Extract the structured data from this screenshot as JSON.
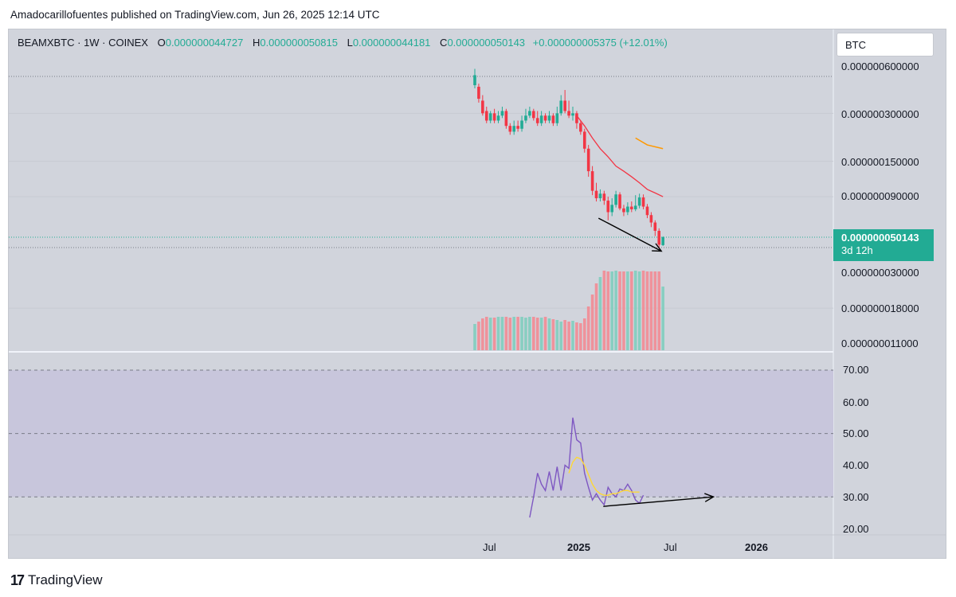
{
  "header": {
    "text": "Amadocarillofuentes published on TradingView.com, Jun 26, 2025 12:14 UTC"
  },
  "legend": {
    "symbol": "BEAMXBTC · 1W · COINEX",
    "open_label": "O",
    "open": "0.000000044727",
    "high_label": "H",
    "high": "0.000000050815",
    "low_label": "L",
    "low": "0.000000044181",
    "close_label": "C",
    "close": "0.000000050143",
    "change": "+0.000000005375 (+12.01%)"
  },
  "currency": "BTC",
  "price_axis": {
    "labels": [
      "0.000000600000",
      "0.000000300000",
      "0.000000150000",
      "0.000000090000",
      "0.000000030000",
      "0.000000018000",
      "0.000000011000"
    ],
    "current_price": "0.000000050143",
    "countdown": "3d 12h"
  },
  "rsi_axis": {
    "labels": [
      "70.00",
      "60.00",
      "50.00",
      "40.00",
      "30.00",
      "20.00"
    ]
  },
  "time_axis": {
    "labels": [
      "Jul",
      "2025",
      "Jul",
      "2026"
    ]
  },
  "footer": {
    "brand": "TradingView"
  },
  "colors": {
    "up": "#22ab94",
    "down": "#f23645",
    "ma": "#f23645",
    "ma2": "#ff9800",
    "rsi": "#7e57c2",
    "rsi_ma": "#fdd835",
    "chart_bg": "#d1d4dc",
    "rsi_band": "#c8c6dc"
  },
  "chart_data": {
    "type": "candlestick",
    "symbol": "BEAMXBTC",
    "interval": "1W",
    "exchange": "COINEX",
    "scale": "log",
    "price_range": [
      1e-08,
      8e-07
    ],
    "rsi_range": [
      20,
      72
    ],
    "candles": [
      {
        "o": 4.5e-07,
        "c": 5.2e-07,
        "h": 5.7e-07,
        "l": 4.3e-07
      },
      {
        "o": 4.4e-07,
        "c": 3.7e-07,
        "h": 4.6e-07,
        "l": 3.5e-07
      },
      {
        "o": 3.6e-07,
        "c": 3e-07,
        "h": 3.9e-07,
        "l": 2.9e-07
      },
      {
        "o": 3.1e-07,
        "c": 2.7e-07,
        "h": 3.3e-07,
        "l": 2.6e-07
      },
      {
        "o": 2.7e-07,
        "c": 3e-07,
        "h": 3.1e-07,
        "l": 2.6e-07
      },
      {
        "o": 3e-07,
        "c": 2.7e-07,
        "h": 3.2e-07,
        "l": 2.6e-07
      },
      {
        "o": 2.7e-07,
        "c": 2.9e-07,
        "h": 3.1e-07,
        "l": 2.6e-07
      },
      {
        "o": 2.9e-07,
        "c": 3.1e-07,
        "h": 3.3e-07,
        "l": 2.8e-07
      },
      {
        "o": 3.1e-07,
        "c": 2.5e-07,
        "h": 3.2e-07,
        "l": 2.4e-07
      },
      {
        "o": 2.5e-07,
        "c": 2.3e-07,
        "h": 2.6e-07,
        "l": 2.2e-07
      },
      {
        "o": 2.3e-07,
        "c": 2.5e-07,
        "h": 2.7e-07,
        "l": 2.2e-07
      },
      {
        "o": 2.5e-07,
        "c": 2.4e-07,
        "h": 2.7e-07,
        "l": 2.3e-07
      },
      {
        "o": 2.4e-07,
        "c": 2.7e-07,
        "h": 2.9e-07,
        "l": 2.3e-07
      },
      {
        "o": 2.7e-07,
        "c": 2.9e-07,
        "h": 3.2e-07,
        "l": 2.6e-07
      },
      {
        "o": 2.9e-07,
        "c": 3.1e-07,
        "h": 3.3e-07,
        "l": 2.8e-07
      },
      {
        "o": 3.1e-07,
        "c": 2.8e-07,
        "h": 3.2e-07,
        "l": 2.7e-07
      },
      {
        "o": 2.8e-07,
        "c": 2.6e-07,
        "h": 3.1e-07,
        "l": 2.5e-07
      },
      {
        "o": 2.6e-07,
        "c": 2.9e-07,
        "h": 3.1e-07,
        "l": 2.5e-07
      },
      {
        "o": 2.9e-07,
        "c": 2.7e-07,
        "h": 3e-07,
        "l": 2.6e-07
      },
      {
        "o": 2.7e-07,
        "c": 2.9e-07,
        "h": 3.1e-07,
        "l": 2.6e-07
      },
      {
        "o": 2.9e-07,
        "c": 2.6e-07,
        "h": 3e-07,
        "l": 2.5e-07
      },
      {
        "o": 2.6e-07,
        "c": 3e-07,
        "h": 3.3e-07,
        "l": 2.5e-07
      },
      {
        "o": 3e-07,
        "c": 3.6e-07,
        "h": 3.9e-07,
        "l": 2.9e-07
      },
      {
        "o": 3.6e-07,
        "c": 3.1e-07,
        "h": 4.2e-07,
        "l": 3e-07
      },
      {
        "o": 3.1e-07,
        "c": 2.9e-07,
        "h": 3.6e-07,
        "l": 2.8e-07
      },
      {
        "o": 2.9e-07,
        "c": 3e-07,
        "h": 3.3e-07,
        "l": 2.7e-07
      },
      {
        "o": 3e-07,
        "c": 2.6e-07,
        "h": 3.1e-07,
        "l": 2.4e-07
      },
      {
        "o": 2.6e-07,
        "c": 2.3e-07,
        "h": 2.7e-07,
        "l": 2.2e-07
      },
      {
        "o": 2.3e-07,
        "c": 1.8e-07,
        "h": 2.4e-07,
        "l": 1.7e-07
      },
      {
        "o": 1.8e-07,
        "c": 1.3e-07,
        "h": 1.9e-07,
        "l": 1.2e-07
      },
      {
        "o": 1.3e-07,
        "c": 9.8e-08,
        "h": 1.4e-07,
        "l": 9.2e-08
      },
      {
        "o": 9.8e-08,
        "c": 8.8e-08,
        "h": 1.1e-07,
        "l": 8.4e-08
      },
      {
        "o": 8.8e-08,
        "c": 9.4e-08,
        "h": 1e-07,
        "l": 8.4e-08
      },
      {
        "o": 9.4e-08,
        "c": 8.5e-08,
        "h": 9.8e-08,
        "l": 8e-08
      },
      {
        "o": 8.5e-08,
        "c": 7.2e-08,
        "h": 9e-08,
        "l": 6.4e-08
      },
      {
        "o": 7.2e-08,
        "c": 8e-08,
        "h": 8.8e-08,
        "l": 6.8e-08
      },
      {
        "o": 8e-08,
        "c": 9.3e-08,
        "h": 9.8e-08,
        "l": 7.7e-08
      },
      {
        "o": 9.3e-08,
        "c": 7.6e-08,
        "h": 9.6e-08,
        "l": 7.4e-08
      },
      {
        "o": 7.6e-08,
        "c": 7.2e-08,
        "h": 8e-08,
        "l": 6.8e-08
      },
      {
        "o": 7.2e-08,
        "c": 7.8e-08,
        "h": 8.3e-08,
        "l": 6.9e-08
      },
      {
        "o": 7.8e-08,
        "c": 7.5e-08,
        "h": 8.4e-08,
        "l": 7.2e-08
      },
      {
        "o": 7.5e-08,
        "c": 7.9e-08,
        "h": 9.2e-08,
        "l": 7.3e-08
      },
      {
        "o": 7.9e-08,
        "c": 8.9e-08,
        "h": 9.4e-08,
        "l": 7.6e-08
      },
      {
        "o": 8.9e-08,
        "c": 7.8e-08,
        "h": 9.3e-08,
        "l": 7.5e-08
      },
      {
        "o": 7.8e-08,
        "c": 6.9e-08,
        "h": 8.1e-08,
        "l": 6.6e-08
      },
      {
        "o": 6.9e-08,
        "c": 6.2e-08,
        "h": 7.2e-08,
        "l": 5.8e-08
      },
      {
        "o": 6.2e-08,
        "c": 5.5e-08,
        "h": 6.4e-08,
        "l": 5.1e-08
      },
      {
        "o": 5.5e-08,
        "c": 4.5e-08,
        "h": 5.7e-08,
        "l": 4.3e-08
      },
      {
        "o": 4.4727e-08,
        "c": 5.0143e-08,
        "h": 5.0815e-08,
        "l": 4.4181e-08
      }
    ],
    "ma": [
      {
        "i": 26,
        "v": 2.9e-07
      },
      {
        "i": 28,
        "v": 2.5e-07
      },
      {
        "i": 30,
        "v": 2.1e-07
      },
      {
        "i": 32,
        "v": 1.8e-07
      },
      {
        "i": 34,
        "v": 1.6e-07
      },
      {
        "i": 36,
        "v": 1.4e-07
      },
      {
        "i": 38,
        "v": 1.3e-07
      },
      {
        "i": 40,
        "v": 1.2e-07
      },
      {
        "i": 42,
        "v": 1.1e-07
      },
      {
        "i": 44,
        "v": 1e-07
      },
      {
        "i": 46,
        "v": 9.5e-08
      },
      {
        "i": 48,
        "v": 9e-08
      }
    ],
    "ma2": [
      {
        "i": 41,
        "v": 2.1e-07
      },
      {
        "i": 44,
        "v": 1.9e-07
      },
      {
        "i": 48,
        "v": 1.8e-07
      }
    ],
    "volume_axis": [
      1.1e-08,
      1.8e-08,
      3e-08
    ],
    "volume_levels": [
      0.33,
      0.36,
      0.4,
      0.42,
      0.41,
      0.41,
      0.42,
      0.42,
      0.42,
      0.41,
      0.42,
      0.42,
      0.42,
      0.41,
      0.42,
      0.42,
      0.41,
      0.41,
      0.42,
      0.4,
      0.39,
      0.38,
      0.36,
      0.38,
      0.36,
      0.37,
      0.35,
      0.34,
      0.4,
      0.55,
      0.7,
      0.84,
      0.92,
      1.0,
      0.99,
      0.99,
      1.0,
      0.99,
      0.99,
      0.99,
      0.99,
      1.0,
      0.99,
      1.0,
      0.99,
      0.99,
      0.99,
      0.99,
      0.8
    ],
    "rsi": [
      {
        "i": 14,
        "v": 23.5
      },
      {
        "i": 15,
        "v": 30
      },
      {
        "i": 16,
        "v": 37.5
      },
      {
        "i": 17,
        "v": 34
      },
      {
        "i": 18,
        "v": 32
      },
      {
        "i": 19,
        "v": 38
      },
      {
        "i": 20,
        "v": 32
      },
      {
        "i": 21,
        "v": 39.5
      },
      {
        "i": 22,
        "v": 32
      },
      {
        "i": 23,
        "v": 40
      },
      {
        "i": 24,
        "v": 39
      },
      {
        "i": 25,
        "v": 55
      },
      {
        "i": 26,
        "v": 48
      },
      {
        "i": 27,
        "v": 47
      },
      {
        "i": 28,
        "v": 37.5
      },
      {
        "i": 29,
        "v": 33
      },
      {
        "i": 30,
        "v": 29
      },
      {
        "i": 31,
        "v": 31
      },
      {
        "i": 32,
        "v": 29
      },
      {
        "i": 33,
        "v": 27.5
      },
      {
        "i": 34,
        "v": 33
      },
      {
        "i": 35,
        "v": 31
      },
      {
        "i": 36,
        "v": 30
      },
      {
        "i": 37,
        "v": 32.5
      },
      {
        "i": 38,
        "v": 32
      },
      {
        "i": 39,
        "v": 34
      },
      {
        "i": 40,
        "v": 32
      },
      {
        "i": 41,
        "v": 29
      },
      {
        "i": 42,
        "v": 28
      },
      {
        "i": 43,
        "v": 30.5
      }
    ],
    "rsi_ma": [
      {
        "i": 24,
        "v": 37.5
      },
      {
        "i": 25,
        "v": 41
      },
      {
        "i": 26,
        "v": 42.5
      },
      {
        "i": 27,
        "v": 42
      },
      {
        "i": 28,
        "v": 40
      },
      {
        "i": 29,
        "v": 37
      },
      {
        "i": 30,
        "v": 34
      },
      {
        "i": 31,
        "v": 32
      },
      {
        "i": 32,
        "v": 31
      },
      {
        "i": 33,
        "v": 30.5
      },
      {
        "i": 34,
        "v": 30.5
      },
      {
        "i": 35,
        "v": 31
      },
      {
        "i": 36,
        "v": 31
      },
      {
        "i": 37,
        "v": 31.5
      },
      {
        "i": 38,
        "v": 32
      },
      {
        "i": 39,
        "v": 32
      },
      {
        "i": 40,
        "v": 31.5
      },
      {
        "i": 41,
        "v": 31.5
      },
      {
        "i": 42,
        "v": 31.5
      }
    ],
    "rsi_bands": {
      "upper": 70,
      "middle": 50,
      "lower": 30
    },
    "trendline_price": {
      "from": {
        "i": 34,
        "v": 6.6e-08
      },
      "to": {
        "i": 48,
        "v": 4.1e-08
      }
    },
    "trendline_rsi": {
      "from": {
        "i": 34,
        "v": 27
      },
      "to": {
        "i": 56,
        "v": 30
      }
    }
  }
}
